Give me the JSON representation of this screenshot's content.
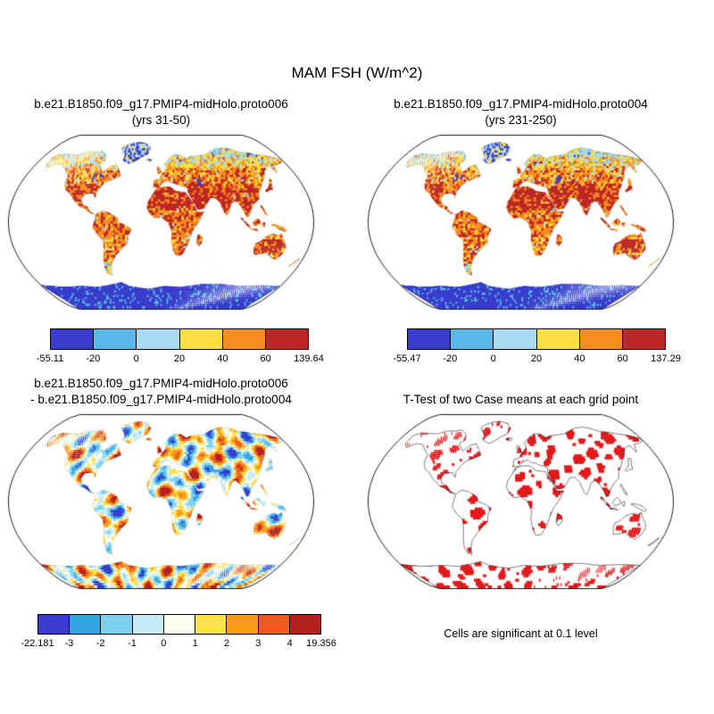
{
  "figure": {
    "title": "MAM FSH (W/m^2)",
    "background": "#ffffff",
    "panels": [
      {
        "id": "case1",
        "title": "b.e21.B1850.f09_g17.PMIP4-midHolo.proto006",
        "subtitle": "(yrs 31-50)",
        "colorbar": {
          "colors": [
            "#3a3dcc",
            "#59b9e8",
            "#a8daf0",
            "#ffdf43",
            "#f88c1e",
            "#bd2727"
          ],
          "ticks": [
            "-55.11",
            "-20",
            "0",
            "20",
            "40",
            "60",
            "139.64"
          ]
        }
      },
      {
        "id": "case2",
        "title": "b.e21.B1850.f09_g17.PMIP4-midHolo.proto004",
        "subtitle": "(yrs 231-250)",
        "colorbar": {
          "colors": [
            "#3a3dcc",
            "#59b9e8",
            "#a8daf0",
            "#ffdf43",
            "#f88c1e",
            "#bd2727"
          ],
          "ticks": [
            "-55.47",
            "-20",
            "0",
            "20",
            "40",
            "60",
            "137.29"
          ]
        }
      },
      {
        "id": "diff",
        "title": "b.e21.B1850.f09_g17.PMIP4-midHolo.proto006",
        "subtitle": "- b.e21.B1850.f09_g17.PMIP4-midHolo.proto004",
        "colorbar": {
          "colors": [
            "#3a3dcc",
            "#35a3e0",
            "#7fd2ef",
            "#c6ecf8",
            "#fdfdee",
            "#ffe14d",
            "#fb9b1d",
            "#ee5a1e",
            "#b42020"
          ],
          "ticks": [
            "-22.181",
            "-3",
            "-2",
            "-1",
            "0",
            "1",
            "2",
            "3",
            "4",
            "19.356"
          ]
        }
      },
      {
        "id": "ttest",
        "title": "T-Test of two Case means at each grid point",
        "caption": "Cells are significant at 0.1 level",
        "significance_color": "#e31a1c"
      }
    ]
  },
  "chart_data": [
    {
      "type": "heatmap",
      "subtype": "filled-contour-global-map",
      "projection": "robinson",
      "variable": "MAM FSH (W/m^2)",
      "title": "b.e21.B1850.f09_g17.PMIP4-midHolo.proto006 (yrs 31-50)",
      "min": -55.11,
      "max": 139.64,
      "contour_levels": [
        -20,
        0,
        20,
        40,
        60
      ],
      "palette": [
        "#3a3dcc",
        "#59b9e8",
        "#a8daf0",
        "#ffdf43",
        "#f88c1e",
        "#bd2727"
      ],
      "legend_position": "below"
    },
    {
      "type": "heatmap",
      "subtype": "filled-contour-global-map",
      "projection": "robinson",
      "variable": "MAM FSH (W/m^2)",
      "title": "b.e21.B1850.f09_g17.PMIP4-midHolo.proto004 (yrs 231-250)",
      "min": -55.47,
      "max": 137.29,
      "contour_levels": [
        -20,
        0,
        20,
        40,
        60
      ],
      "palette": [
        "#3a3dcc",
        "#59b9e8",
        "#a8daf0",
        "#ffdf43",
        "#f88c1e",
        "#bd2727"
      ],
      "legend_position": "below"
    },
    {
      "type": "heatmap",
      "subtype": "difference-global-map",
      "projection": "robinson",
      "variable": "MAM FSH (W/m^2)",
      "title": "b.e21.B1850.f09_g17.PMIP4-midHolo.proto006 - b.e21.B1850.f09_g17.PMIP4-midHolo.proto004",
      "min": -22.181,
      "max": 19.356,
      "contour_levels": [
        -3,
        -2,
        -1,
        0,
        1,
        2,
        3,
        4
      ],
      "palette": [
        "#3a3dcc",
        "#35a3e0",
        "#7fd2ef",
        "#c6ecf8",
        "#fdfdee",
        "#ffe14d",
        "#fb9b1d",
        "#ee5a1e",
        "#b42020"
      ],
      "legend_position": "below"
    },
    {
      "type": "map",
      "subtype": "significance-mask-global-map",
      "projection": "robinson",
      "title": "T-Test of two Case means at each grid point",
      "note": "Cells are significant at 0.1 level",
      "significance_color": "#e31a1c"
    }
  ]
}
